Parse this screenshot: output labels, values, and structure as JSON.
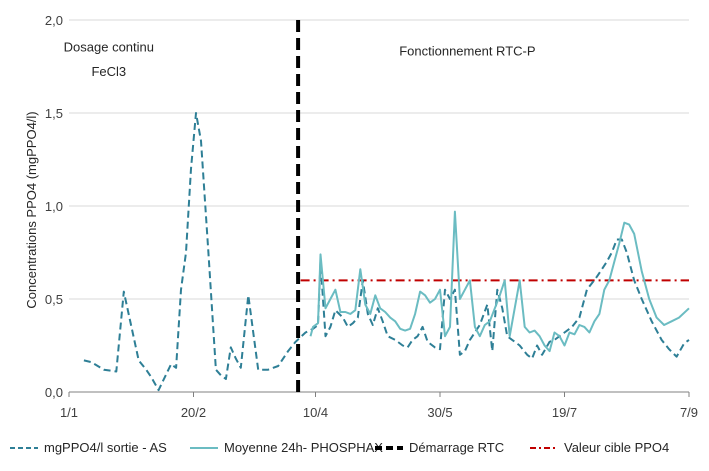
{
  "chart_data": {
    "type": "line",
    "ylabel": "Concentrations PPO4 (mgPPO4/l)",
    "ylim": [
      0,
      2.0
    ],
    "yticks": [
      "0,0",
      "0,5",
      "1,0",
      "1,5",
      "2,0"
    ],
    "xlim": [
      0,
      249
    ],
    "xticks": [
      {
        "x": 0,
        "label": "1/1"
      },
      {
        "x": 50,
        "label": "20/2"
      },
      {
        "x": 99,
        "label": "10/4"
      },
      {
        "x": 149,
        "label": "30/5"
      },
      {
        "x": 199,
        "label": "19/7"
      },
      {
        "x": 249,
        "label": "7/9"
      }
    ],
    "grid": "horizontal",
    "legend_position": "bottom",
    "annotations": [
      {
        "text": "Dosage continu",
        "x": 16,
        "y": 1.83
      },
      {
        "text": "FeCl3",
        "x": 16,
        "y": 1.7
      },
      {
        "text": "Fonctionnement RTC-P",
        "x": 160,
        "y": 1.81
      }
    ],
    "series": [
      {
        "name": "mgPPO4/l sortie - AS",
        "color": "#2e7f96",
        "style": "dashed",
        "x": [
          6,
          9,
          14,
          19,
          22,
          28,
          31,
          33,
          36,
          41,
          43,
          45,
          47,
          49,
          51,
          53,
          56,
          59,
          61,
          63,
          65,
          67,
          69,
          72,
          76,
          80,
          84,
          88,
          91,
          95,
          98,
          100,
          101,
          103,
          105,
          107,
          110,
          112,
          114,
          116,
          118,
          120,
          122,
          124,
          126,
          128,
          131,
          134,
          136,
          138,
          140,
          142,
          144,
          147,
          149,
          151,
          153,
          155,
          157,
          159,
          161,
          165,
          168,
          170,
          172,
          174,
          176,
          178,
          181,
          184,
          186,
          188,
          190,
          193,
          195,
          197,
          199,
          202,
          205,
          208,
          212,
          216,
          218,
          220,
          222,
          224,
          227,
          230,
          234,
          238,
          241,
          244,
          247,
          249
        ],
        "y": [
          0.17,
          0.16,
          0.12,
          0.11,
          0.54,
          0.17,
          0.12,
          0.08,
          0.01,
          0.15,
          0.13,
          0.55,
          0.75,
          1.2,
          1.5,
          1.35,
          0.75,
          0.12,
          0.09,
          0.07,
          0.24,
          0.18,
          0.13,
          0.52,
          0.12,
          0.12,
          0.14,
          0.22,
          0.27,
          0.32,
          0.34,
          0.36,
          0.7,
          0.3,
          0.35,
          0.44,
          0.4,
          0.35,
          0.37,
          0.4,
          0.6,
          0.42,
          0.36,
          0.45,
          0.38,
          0.3,
          0.28,
          0.25,
          0.24,
          0.28,
          0.3,
          0.35,
          0.27,
          0.24,
          0.23,
          0.55,
          0.5,
          0.55,
          0.2,
          0.22,
          0.28,
          0.36,
          0.47,
          0.22,
          0.55,
          0.45,
          0.3,
          0.28,
          0.25,
          0.2,
          0.18,
          0.25,
          0.2,
          0.27,
          0.28,
          0.3,
          0.32,
          0.35,
          0.4,
          0.55,
          0.62,
          0.7,
          0.75,
          0.82,
          0.82,
          0.75,
          0.6,
          0.5,
          0.38,
          0.28,
          0.23,
          0.19,
          0.26,
          0.28
        ]
      },
      {
        "name": "Moyenne 24h- PHOSPHAX",
        "color": "#6bbcc2",
        "style": "solid",
        "x": [
          97,
          98,
          100,
          101,
          103,
          105,
          107,
          109,
          111,
          113,
          115,
          117,
          119,
          121,
          123,
          125,
          127,
          129,
          131,
          133,
          135,
          137,
          139,
          141,
          143,
          145,
          147,
          149,
          151,
          153,
          155,
          157,
          159,
          161,
          163,
          165,
          167,
          169,
          171,
          173,
          175,
          177,
          179,
          181,
          183,
          185,
          187,
          189,
          191,
          193,
          195,
          197,
          199,
          201,
          203,
          205,
          207,
          209,
          211,
          213,
          215,
          217,
          219,
          221,
          223,
          225,
          227,
          230,
          233,
          236,
          239,
          242,
          245,
          249
        ],
        "y": [
          0.3,
          0.35,
          0.37,
          0.74,
          0.45,
          0.5,
          0.55,
          0.43,
          0.43,
          0.42,
          0.44,
          0.66,
          0.47,
          0.42,
          0.52,
          0.45,
          0.43,
          0.4,
          0.38,
          0.34,
          0.33,
          0.34,
          0.42,
          0.54,
          0.52,
          0.48,
          0.5,
          0.55,
          0.3,
          0.35,
          0.97,
          0.5,
          0.55,
          0.6,
          0.35,
          0.3,
          0.36,
          0.38,
          0.45,
          0.52,
          0.6,
          0.3,
          0.45,
          0.6,
          0.35,
          0.32,
          0.33,
          0.3,
          0.25,
          0.22,
          0.32,
          0.3,
          0.25,
          0.32,
          0.31,
          0.36,
          0.35,
          0.32,
          0.38,
          0.42,
          0.55,
          0.6,
          0.7,
          0.8,
          0.91,
          0.9,
          0.85,
          0.65,
          0.5,
          0.4,
          0.36,
          0.38,
          0.4,
          0.45
        ]
      },
      {
        "name": "Démarrage RTC",
        "color": "#000000",
        "style": "dashed-vertical",
        "x": [
          92,
          92
        ],
        "y": [
          0,
          2.0
        ]
      },
      {
        "name": "Valeur cible PPO4",
        "color": "#c00000",
        "style": "dash-dot",
        "x": [
          93,
          249
        ],
        "y": [
          0.6,
          0.6
        ]
      }
    ]
  }
}
